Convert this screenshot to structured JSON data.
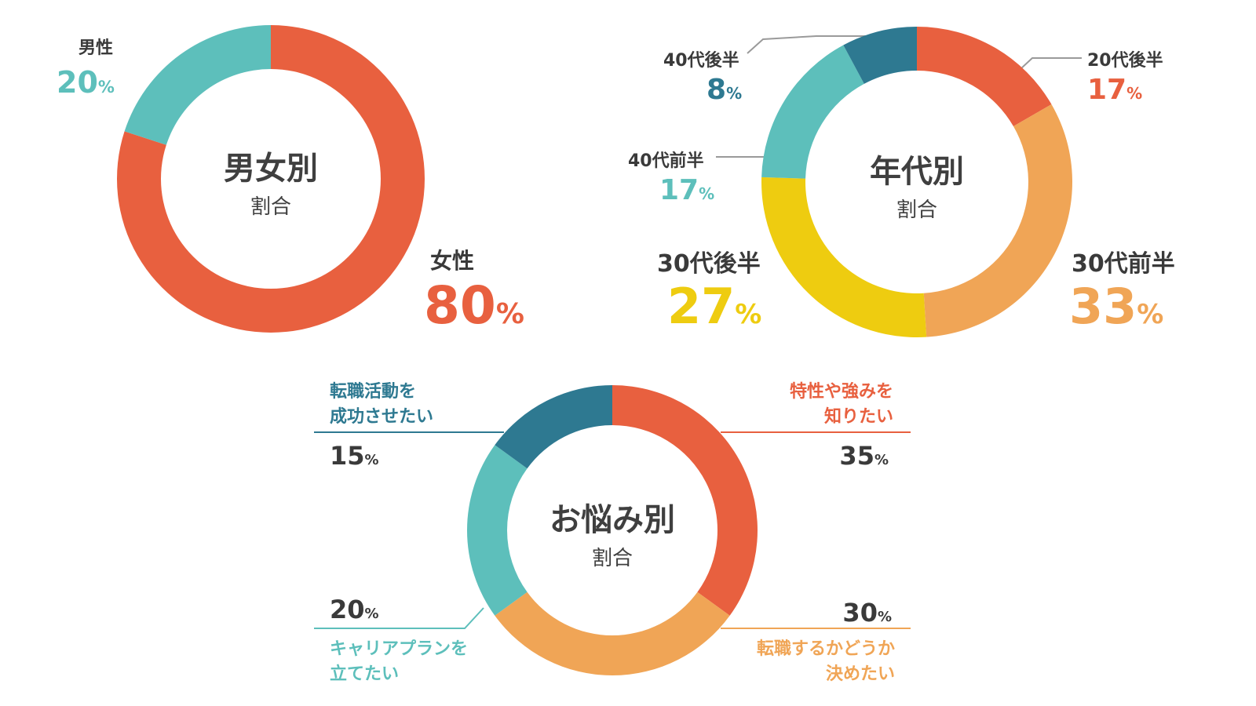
{
  "colors": {
    "red": "#e8603f",
    "teal": "#5dbfbb",
    "navy": "#2e7991",
    "orange": "#f0a556",
    "yellow": "#eecc10",
    "text": "#3a3a3a"
  },
  "chart_data": [
    {
      "type": "pie",
      "variant": "donut",
      "title": "男女別",
      "subtitle": "割合",
      "categories": [
        "女性",
        "男性"
      ],
      "values": [
        80,
        20
      ],
      "value_labels": [
        "80",
        "20"
      ],
      "unit": "%",
      "colors": [
        "#e8603f",
        "#5dbfbb"
      ]
    },
    {
      "type": "pie",
      "variant": "donut",
      "title": "年代別",
      "subtitle": "割合",
      "categories": [
        "20代後半",
        "30代前半",
        "30代後半",
        "40代前半",
        "40代後半"
      ],
      "values": [
        17,
        33,
        27,
        17,
        8
      ],
      "value_labels": [
        "17",
        "33",
        "27",
        "17",
        "8"
      ],
      "unit": "%",
      "colors": [
        "#e8603f",
        "#f0a556",
        "#eecc10",
        "#5dbfbb",
        "#2e7991"
      ]
    },
    {
      "type": "pie",
      "variant": "donut",
      "title": "お悩み別",
      "subtitle": "割合",
      "categories": [
        "特性や強みを知りたい",
        "転職するかどうか決めたい",
        "キャリアプランを立てたい",
        "転職活動を成功させたい"
      ],
      "category_lines": [
        [
          "特性や強みを",
          "知りたい"
        ],
        [
          "転職するかどうか",
          "決めたい"
        ],
        [
          "キャリアプランを",
          "立てたい"
        ],
        [
          "転職活動を",
          "成功させたい"
        ]
      ],
      "values": [
        35,
        30,
        20,
        15
      ],
      "value_labels": [
        "35",
        "30",
        "20",
        "15"
      ],
      "unit": "%",
      "colors": [
        "#e8603f",
        "#f0a556",
        "#5dbfbb",
        "#2e7991"
      ]
    }
  ]
}
